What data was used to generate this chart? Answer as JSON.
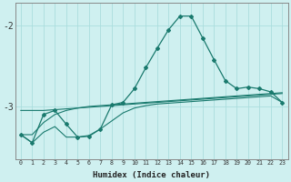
{
  "xlabel": "Humidex (Indice chaleur)",
  "x": [
    0,
    1,
    2,
    3,
    4,
    5,
    6,
    7,
    8,
    9,
    10,
    11,
    12,
    13,
    14,
    15,
    16,
    17,
    18,
    19,
    20,
    21,
    22,
    23
  ],
  "main_y": [
    -3.35,
    -3.45,
    -3.1,
    -3.05,
    -3.22,
    -3.38,
    -3.37,
    -3.28,
    -2.98,
    -2.95,
    -2.78,
    -2.52,
    -2.28,
    -2.05,
    -1.88,
    -1.88,
    -2.15,
    -2.42,
    -2.68,
    -2.78,
    -2.76,
    -2.78,
    -2.82,
    -2.95
  ],
  "line2_y": [
    -3.05,
    -3.05,
    -3.05,
    -3.04,
    -3.03,
    -3.02,
    -3.01,
    -3.0,
    -2.99,
    -2.98,
    -2.97,
    -2.96,
    -2.95,
    -2.94,
    -2.93,
    -2.92,
    -2.91,
    -2.9,
    -2.89,
    -2.88,
    -2.87,
    -2.86,
    -2.85,
    -2.84
  ],
  "line3_y": [
    -3.35,
    -3.35,
    -3.2,
    -3.1,
    -3.05,
    -3.02,
    -3.0,
    -2.99,
    -2.98,
    -2.97,
    -2.96,
    -2.95,
    -2.94,
    -2.93,
    -2.92,
    -2.91,
    -2.9,
    -2.89,
    -2.88,
    -2.87,
    -2.86,
    -2.85,
    -2.84,
    -2.83
  ],
  "line4_y": [
    -3.35,
    -3.45,
    -3.32,
    -3.25,
    -3.38,
    -3.38,
    -3.36,
    -3.28,
    -3.18,
    -3.08,
    -3.02,
    -2.99,
    -2.97,
    -2.96,
    -2.95,
    -2.94,
    -2.93,
    -2.92,
    -2.91,
    -2.9,
    -2.89,
    -2.88,
    -2.87,
    -2.95
  ],
  "bg_color": "#cff0f0",
  "grid_color": "#aadddd",
  "line_color": "#1a7a6e",
  "ylim": [
    -3.65,
    -1.72
  ],
  "yticks": [
    -3.0,
    -2.0
  ],
  "ytick_labels": [
    "-3",
    "-2"
  ]
}
